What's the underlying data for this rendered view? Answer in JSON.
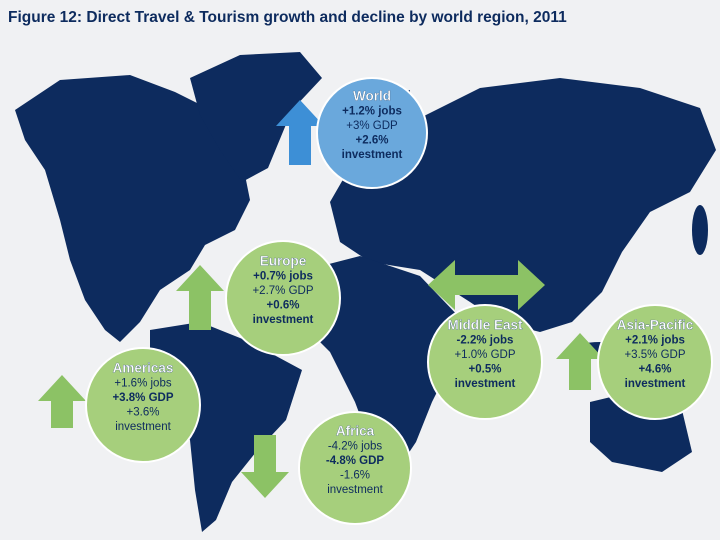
{
  "header": {
    "title": "Figure 12: Direct Travel & Tourism growth and decline by world region, 2011"
  },
  "regions": [
    {
      "name": "World",
      "lines": [
        {
          "text": "+1.2% jobs",
          "bold": true
        },
        {
          "text": "+3% GDP",
          "bold": false
        },
        {
          "text": "+2.6%",
          "bold": true
        },
        {
          "text": "investment",
          "bold": true
        }
      ]
    },
    {
      "name": "Europe",
      "lines": [
        {
          "text": "+0.7% jobs",
          "bold": true
        },
        {
          "text": "+2.7% GDP",
          "bold": false
        },
        {
          "text": "+0.6%",
          "bold": true
        },
        {
          "text": "investment",
          "bold": true
        }
      ]
    },
    {
      "name": "Americas",
      "lines": [
        {
          "text": "+1.6% jobs",
          "bold": false
        },
        {
          "text": "+3.8% GDP",
          "bold": true
        },
        {
          "text": "+3.6%",
          "bold": false
        },
        {
          "text": "investment",
          "bold": false
        }
      ]
    },
    {
      "name": "Africa",
      "lines": [
        {
          "text": "-4.2% jobs",
          "bold": false
        },
        {
          "text": "-4.8% GDP",
          "bold": true
        },
        {
          "text": "-1.6%",
          "bold": false
        },
        {
          "text": "investment",
          "bold": false
        }
      ]
    },
    {
      "name": "Middle East",
      "lines": [
        {
          "text": "-2.2% jobs",
          "bold": true
        },
        {
          "text": "+1.0% GDP",
          "bold": false
        },
        {
          "text": "+0.5%",
          "bold": true
        },
        {
          "text": "investment",
          "bold": true
        }
      ]
    },
    {
      "name": "Asia-Pacific",
      "lines": [
        {
          "text": "+2.1% jobs",
          "bold": true
        },
        {
          "text": "+3.5% GDP",
          "bold": false
        },
        {
          "text": "+4.6%",
          "bold": true
        },
        {
          "text": "investment",
          "bold": true
        }
      ]
    }
  ]
}
